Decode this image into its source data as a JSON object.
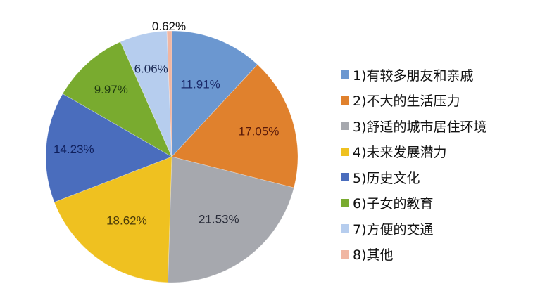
{
  "chart_data": {
    "type": "pie",
    "title": "",
    "start_angle_deg": 0,
    "direction": "clockwise",
    "categories": [
      "1)有较多朋友和亲戚",
      "2)不大的生活压力",
      "3)舒适的城市居住环境",
      "4)未来发展潜力",
      "5)历史文化",
      "6)子女的教育",
      "7)方便的交通",
      "8)其他"
    ],
    "values": [
      11.91,
      17.05,
      21.53,
      18.62,
      14.23,
      9.97,
      6.06,
      0.62
    ],
    "value_labels": [
      "11.91%",
      "17.05%",
      "21.53%",
      "18.62%",
      "14.23%",
      "9.97%",
      "6.06%",
      "0.62%"
    ],
    "colors": [
      "#6b97d0",
      "#e0812d",
      "#a6a8ae",
      "#efc120",
      "#4a6dbd",
      "#79ab2f",
      "#b6cdee",
      "#f0b6a2"
    ],
    "label_colors": [
      "#1b2a6a",
      "#5a1a0a",
      "#2a2d3a",
      "#4a3a08",
      "#0f1f5c",
      "#1f3a10",
      "#1b2a55",
      "#111111"
    ],
    "legend_position": "right"
  },
  "legend": {
    "items": [
      {
        "label": "1)有较多朋友和亲戚",
        "color": "#6b97d0"
      },
      {
        "label": "2)不大的生活压力",
        "color": "#e0812d"
      },
      {
        "label": "3)舒适的城市居住环境",
        "color": "#a6a8ae"
      },
      {
        "label": "4)未来发展潜力",
        "color": "#efc120"
      },
      {
        "label": "5)历史文化",
        "color": "#4a6dbd"
      },
      {
        "label": "6)子女的教育",
        "color": "#79ab2f"
      },
      {
        "label": "7)方便的交通",
        "color": "#b6cdee"
      },
      {
        "label": "8)其他",
        "color": "#f0b6a2"
      }
    ]
  }
}
